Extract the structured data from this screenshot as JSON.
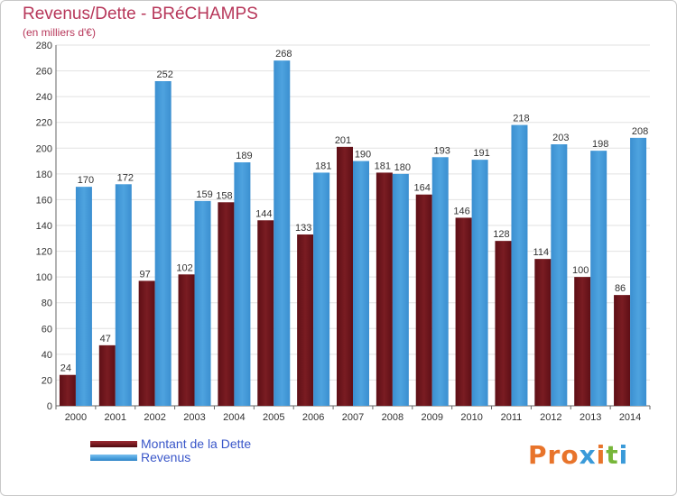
{
  "header": {
    "title": "Revenus/Dette - BRéCHAMPS",
    "subtitle": "(en milliers d'€)"
  },
  "colors": {
    "dette": "#7a1c22",
    "revenus": "#4ea3df",
    "title": "#b7375a",
    "legend_text": "#3a57c9"
  },
  "logo": {
    "text": "Proxiti",
    "letter_colors": [
      "#e8742b",
      "#e8742b",
      "#e8742b",
      "#3a9ad9",
      "#e8742b",
      "#77b63a",
      "#3a9ad9"
    ]
  },
  "chart_data": {
    "type": "bar",
    "title": "Revenus/Dette - BRéCHAMPS",
    "subtitle": "(en milliers d'€)",
    "categories": [
      "2000",
      "2001",
      "2002",
      "2003",
      "2004",
      "2005",
      "2006",
      "2007",
      "2008",
      "2009",
      "2010",
      "2011",
      "2012",
      "2013",
      "2014"
    ],
    "series": [
      {
        "name": "Montant de la Dette",
        "values": [
          24,
          47,
          97,
          102,
          158,
          144,
          133,
          201,
          181,
          164,
          146,
          128,
          114,
          100,
          86
        ]
      },
      {
        "name": "Revenus",
        "values": [
          170,
          172,
          252,
          159,
          189,
          268,
          181,
          190,
          180,
          193,
          191,
          218,
          203,
          198,
          208
        ]
      }
    ],
    "ylim": [
      0,
      280
    ],
    "yticks": [
      0,
      20,
      40,
      60,
      80,
      100,
      120,
      140,
      160,
      180,
      200,
      220,
      240,
      260,
      280
    ],
    "grid": true,
    "legend_position": "bottom-left"
  }
}
